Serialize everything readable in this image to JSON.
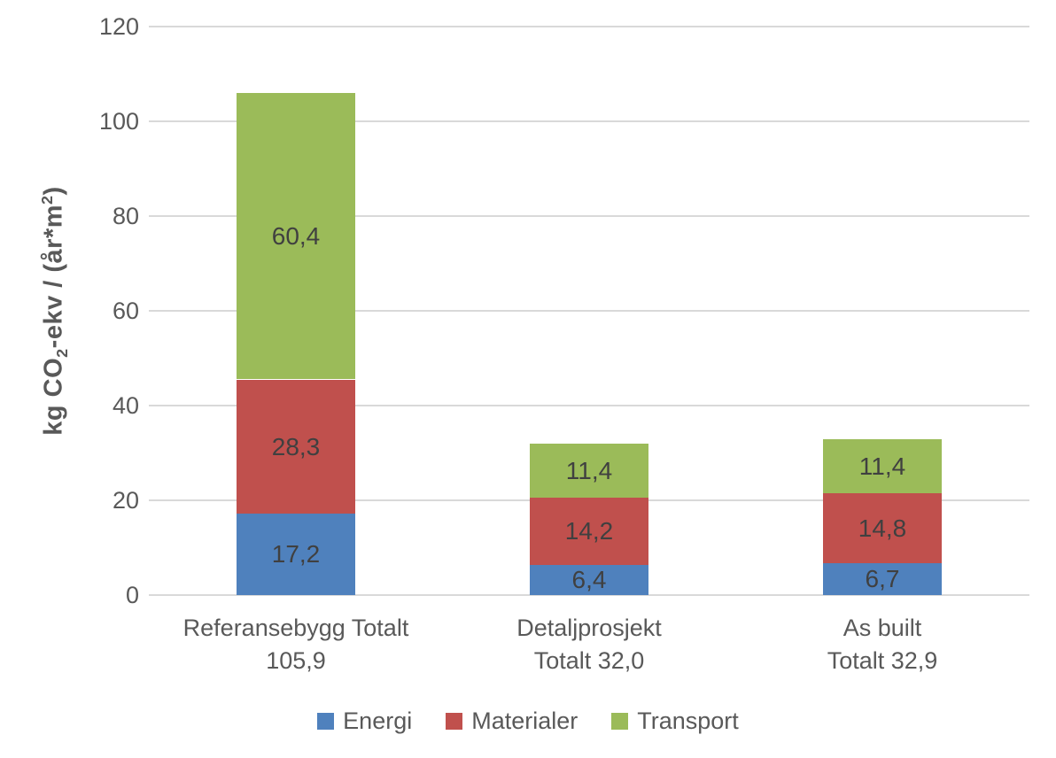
{
  "chart_data": {
    "type": "bar",
    "stacked": true,
    "title": "",
    "ylabel_unicode": "kg CO₂-ekv / (år*m²)",
    "ylabel": {
      "part1": "kg CO",
      "sub": "2",
      "part2": "-ekv / (år*m",
      "sup": "2",
      "part3": ")"
    },
    "ylim": [
      0,
      120
    ],
    "yticks": [
      "0",
      "20",
      "40",
      "60",
      "80",
      "100",
      "120"
    ],
    "grid": true,
    "legend_position": "bottom",
    "categories": [
      {
        "lines": [
          "Referansebygg Totalt",
          "105,9"
        ],
        "total": 105.9,
        "total_label": "105,9"
      },
      {
        "lines": [
          "Detaljprosjekt",
          "Totalt 32,0"
        ],
        "total": 32.0,
        "total_label": "32,0"
      },
      {
        "lines": [
          "As built",
          "Totalt 32,9"
        ],
        "total": 32.9,
        "total_label": "32,9"
      }
    ],
    "series": [
      {
        "name": "Energi",
        "color": "#4F81BD",
        "values": [
          17.2,
          6.4,
          6.7
        ],
        "labels": [
          "17,2",
          "6,4",
          "6,7"
        ]
      },
      {
        "name": "Materialer",
        "color": "#C0504D",
        "values": [
          28.3,
          14.2,
          14.8
        ],
        "labels": [
          "28,3",
          "14,2",
          "14,8"
        ]
      },
      {
        "name": "Transport",
        "color": "#9BBB59",
        "values": [
          60.4,
          11.4,
          11.4
        ],
        "labels": [
          "60,4",
          "11,4",
          "11,4"
        ]
      }
    ],
    "colors": {
      "grid": "#D9D9D9",
      "tick_label": "#595959",
      "axis_title": "#595959",
      "data_label": "#404040",
      "category_label": "#595959",
      "legend_label": "#595959",
      "background": "#FFFFFF"
    }
  }
}
